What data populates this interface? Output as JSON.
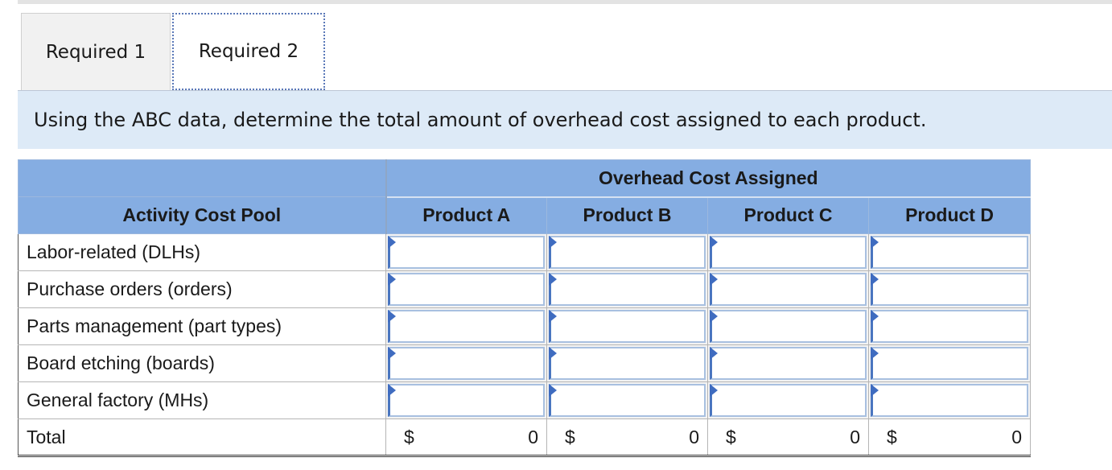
{
  "tabs": [
    {
      "label": "Required 1",
      "active": false
    },
    {
      "label": "Required 2",
      "active": true
    }
  ],
  "instruction": "Using the ABC data, determine the total amount of overhead cost assigned to each product.",
  "table": {
    "group_header": "Overhead Cost Assigned",
    "pool_header": "Activity Cost Pool",
    "columns": [
      "Product A",
      "Product B",
      "Product C",
      "Product D"
    ],
    "rows": [
      {
        "label": "Labor-related (DLHs)",
        "values": [
          "",
          "",
          "",
          ""
        ]
      },
      {
        "label": "Purchase orders (orders)",
        "values": [
          "",
          "",
          "",
          ""
        ]
      },
      {
        "label": "Parts management (part types)",
        "values": [
          "",
          "",
          "",
          ""
        ]
      },
      {
        "label": "Board etching (boards)",
        "values": [
          "",
          "",
          "",
          ""
        ]
      },
      {
        "label": "General factory (MHs)",
        "values": [
          "",
          "",
          "",
          ""
        ]
      }
    ],
    "total": {
      "label": "Total",
      "currency": "$",
      "values": [
        "0",
        "0",
        "0",
        "0"
      ]
    }
  },
  "colors": {
    "header_bg": "#85ade2",
    "banner_bg": "#ddeaf7",
    "input_flag": "#3f6cc0"
  }
}
